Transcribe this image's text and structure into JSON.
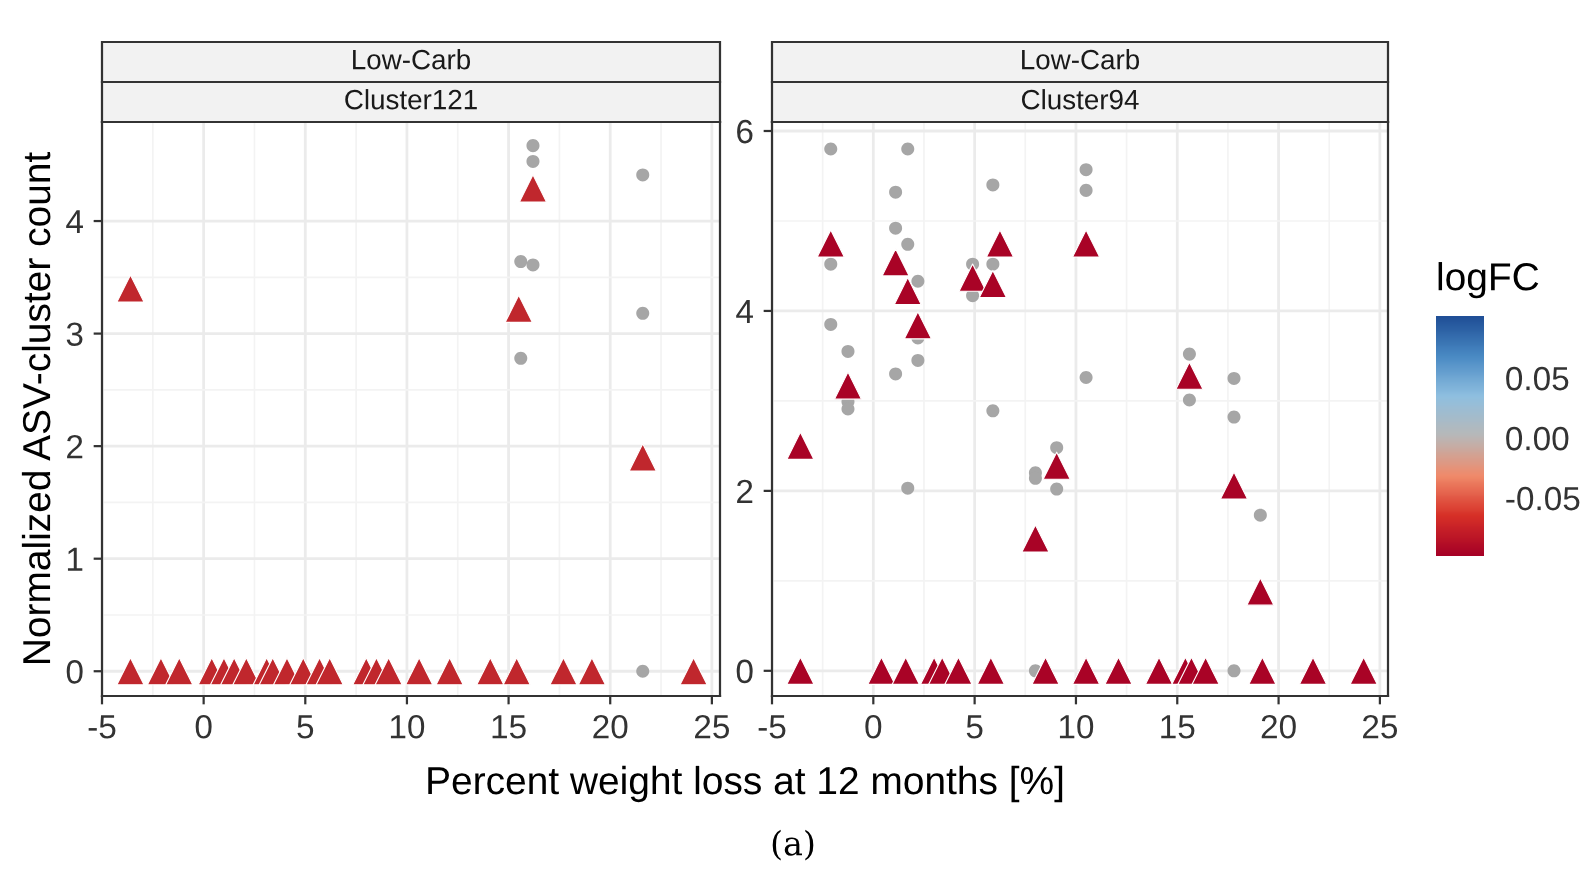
{
  "chart_data": [
    {
      "type": "scatter",
      "title": "Low-Carb",
      "subtitle": "Cluster121",
      "xlabel": "Percent weight loss at 12 months [%]",
      "ylabel": "Normalized ASV-cluster count",
      "annotations": [
        "(a)"
      ],
      "xlim": [
        -5,
        25.4
      ],
      "xticks": [
        -5,
        0,
        5,
        10,
        15,
        20,
        25
      ],
      "ylim": [
        -0.22,
        4.88
      ],
      "yticks": [
        0,
        1,
        2,
        3,
        4
      ],
      "grid": true,
      "series": [
        {
          "marker": "circle",
          "color": "#a6a6a6",
          "x": [
            16.2,
            16.2,
            15.6,
            16.2,
            15.6,
            21.6,
            21.6,
            21.6
          ],
          "values": [
            4.67,
            4.53,
            3.64,
            3.61,
            2.78,
            4.41,
            3.18,
            0
          ]
        },
        {
          "marker": "triangle",
          "color": "#c0272d",
          "x": [
            -3.6,
            15.5,
            16.2,
            21.6,
            -3.6,
            -2.1,
            -1.2,
            0.4,
            1.0,
            1.5,
            2.1,
            3.1,
            3.4,
            4.1,
            4.9,
            5.7,
            6.2,
            8.0,
            8.5,
            9.1,
            10.6,
            12.1,
            14.1,
            15.4,
            17.7,
            19.1,
            24.1
          ],
          "values": [
            3.4,
            3.22,
            4.29,
            1.9,
            0,
            0,
            0,
            0,
            0,
            0,
            0,
            0,
            0,
            0,
            0,
            0,
            0,
            0,
            0,
            0,
            0,
            0,
            0,
            0,
            0,
            0,
            0
          ]
        }
      ]
    },
    {
      "type": "scatter",
      "title": "Low-Carb",
      "subtitle": "Cluster94",
      "clabel": "logFC",
      "clim": [
        -0.1,
        0.1
      ],
      "cticks": [
        {
          "value": -0.05,
          "label": "-0.05"
        },
        {
          "value": 0,
          "label": "0.00"
        },
        {
          "value": 0.05,
          "label": "0.05"
        }
      ],
      "xlim": [
        -5,
        25.4
      ],
      "xticks": [
        -5,
        0,
        5,
        10,
        15,
        20,
        25
      ],
      "ylim": [
        -0.28,
        6.1
      ],
      "yticks": [
        0,
        2,
        4,
        6
      ],
      "grid": true,
      "series": [
        {
          "marker": "circle",
          "color": "#a6a6a6",
          "x": [
            -2.1,
            -2.1,
            -2.1,
            -1.25,
            -1.25,
            -1.25,
            1.1,
            1.1,
            1.1,
            1.7,
            1.7,
            1.7,
            2.2,
            2.2,
            2.2,
            4.9,
            4.9,
            5.9,
            5.9,
            5.9,
            8.0,
            8.0,
            8.0,
            9.05,
            9.05,
            10.5,
            10.5,
            10.5,
            15.6,
            15.6,
            17.8,
            17.8,
            17.8,
            19.1
          ],
          "values": [
            5.8,
            4.52,
            3.85,
            3.55,
            2.99,
            2.91,
            5.32,
            4.92,
            3.3,
            5.8,
            4.74,
            2.03,
            4.33,
            3.7,
            3.45,
            4.52,
            4.17,
            5.4,
            4.52,
            2.89,
            2.2,
            2.14,
            0,
            2.48,
            2.02,
            5.57,
            5.34,
            3.26,
            3.52,
            3.01,
            3.25,
            2.82,
            0,
            1.73
          ]
        },
        {
          "marker": "triangle",
          "x": [
            -3.6,
            -2.1,
            -1.25,
            1.1,
            1.7,
            2.2,
            4.9,
            5.9,
            6.25,
            8.0,
            9.05,
            10.5,
            15.6,
            17.8,
            19.1,
            -3.6,
            0.4,
            1.6,
            3.0,
            3.4,
            4.2,
            5.8,
            8.5,
            10.5,
            12.1,
            14.1,
            15.4,
            15.7,
            16.4,
            19.2,
            21.7,
            24.2
          ],
          "values": [
            2.5,
            4.75,
            3.17,
            4.54,
            4.22,
            3.84,
            4.37,
            4.3,
            4.75,
            1.47,
            2.28,
            4.75,
            3.28,
            2.06,
            0.88,
            0,
            0,
            0,
            0,
            0,
            0,
            0,
            0,
            0,
            0,
            0,
            0,
            0,
            0,
            0,
            0,
            0
          ],
          "cvalues": [
            -0.097,
            -0.097,
            -0.097,
            -0.097,
            -0.097,
            -0.097,
            -0.097,
            -0.097,
            -0.097,
            -0.097,
            -0.097,
            -0.097,
            -0.097,
            -0.097,
            -0.097,
            -0.097,
            -0.097,
            -0.097,
            -0.097,
            -0.097,
            -0.097,
            -0.097,
            -0.097,
            -0.097,
            -0.097,
            -0.097,
            -0.097,
            -0.097,
            -0.097,
            -0.097,
            -0.097,
            -0.097
          ]
        }
      ]
    }
  ]
}
